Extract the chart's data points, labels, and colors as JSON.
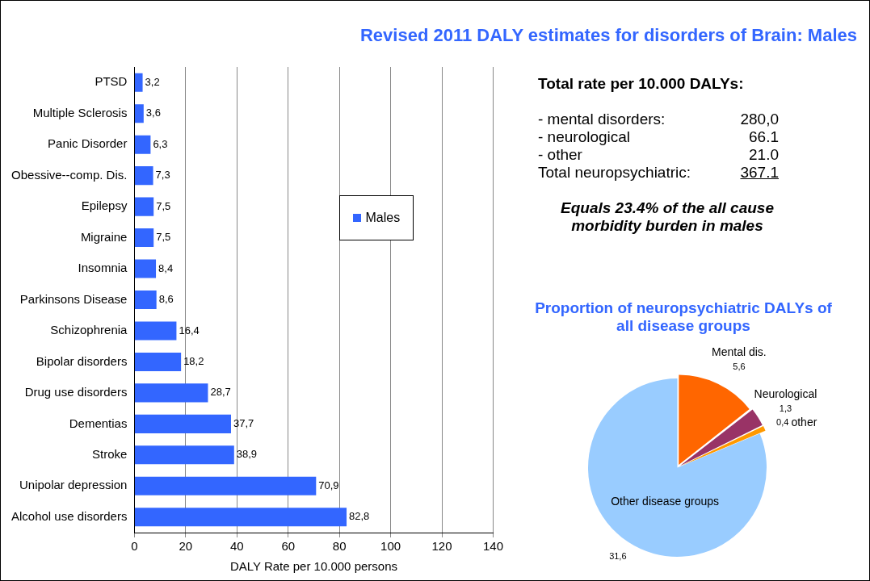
{
  "chart_data": [
    {
      "type": "bar",
      "orientation": "horizontal",
      "title": "Revised 2011 DALY estimates for disorders of Brain: Males",
      "xlabel": "DALY Rate per 10.000 persons",
      "categories": [
        "PTSD",
        "Multiple Sclerosis",
        "Panic Disorder",
        "Obessive--comp. Dis.",
        "Epilepsy",
        "Migraine",
        "Insomnia",
        "Parkinsons Disease",
        "Schizophrenia",
        "Bipolar disorders",
        "Drug use disorders",
        "Dementias",
        "Stroke",
        "Unipolar depression",
        "Alcohol use disorders"
      ],
      "series": [
        {
          "name": "Males",
          "color": "#3366ff",
          "values": [
            3.2,
            3.6,
            6.3,
            7.3,
            7.5,
            7.5,
            8.4,
            8.6,
            16.4,
            18.2,
            28.7,
            37.7,
            38.9,
            70.9,
            82.8
          ],
          "value_labels": [
            "3,2",
            "3,6",
            "6,3",
            "7,3",
            "7,5",
            "7,5",
            "8,4",
            "8,6",
            "16,4",
            "18,2",
            "28,7",
            "37,7",
            "38,9",
            "70,9",
            "82,8"
          ]
        }
      ],
      "xlim": [
        0,
        140
      ],
      "xticks": [
        0,
        20,
        40,
        60,
        80,
        100,
        120,
        140
      ],
      "grid": "x",
      "legend": "right"
    },
    {
      "type": "other",
      "title": "Total rate per 10.000 DALYs:",
      "annotations": [
        "- mental disorders:",
        "280,0",
        "- neurological",
        "66.1",
        "- other",
        "21.0",
        "Total neuropsychiatric:",
        "367.1",
        "Equals 23.4% of the all cause morbidity burden in males"
      ]
    },
    {
      "type": "pie",
      "title": "Proportion of neuropsychiatric DALYs of all disease groups",
      "categories": [
        "Mental dis.",
        "Neurological",
        "other",
        "Other disease groups"
      ],
      "values": [
        5.6,
        1.3,
        0.4,
        31.6
      ],
      "value_labels": [
        "5,6",
        "1,3",
        "0,4",
        "31,6"
      ],
      "colors": [
        "#ff6600",
        "#993366",
        "#ff9900",
        "#99ccff"
      ]
    }
  ]
}
